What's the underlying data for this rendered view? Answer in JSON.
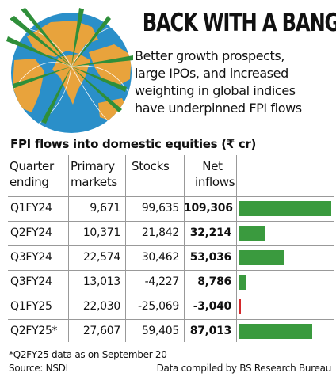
{
  "header": {
    "headline": "BACK WITH A BANG",
    "subhead_lines": [
      "Better growth prospects,",
      "large IPOs, and increased",
      "weighting in global indices",
      "have underpinned FPI flows"
    ]
  },
  "colors": {
    "positive_bar": "#3a9a3e",
    "negative_bar": "#d4282b",
    "ocean": "#2a8fc9",
    "land": "#e8a33c"
  },
  "chart_data": {
    "type": "table",
    "title": "FPI flows into domestic equities (₹ cr)",
    "columns": [
      {
        "line1": "Quarter",
        "line2": "ending"
      },
      {
        "line1": "Primary",
        "line2": "markets"
      },
      {
        "line1": "Stocks",
        "line2": ""
      },
      {
        "line1": "Net",
        "line2": "inflows"
      }
    ],
    "rows": [
      {
        "quarter": "Q1FY24",
        "primary": "9,671",
        "stocks": "99,635",
        "net": "109,306",
        "net_value": 109306
      },
      {
        "quarter": "Q2FY24",
        "primary": "10,371",
        "stocks": "21,842",
        "net": "32,214",
        "net_value": 32214
      },
      {
        "quarter": "Q3FY24",
        "primary": "22,574",
        "stocks": "30,462",
        "net": "53,036",
        "net_value": 53036
      },
      {
        "quarter": "Q3FY24",
        "primary": "13,013",
        "stocks": "-4,227",
        "net": "8,786",
        "net_value": 8786
      },
      {
        "quarter": "Q1FY25",
        "primary": "22,030",
        "stocks": "-25,069",
        "net": "-3,040",
        "net_value": -3040
      },
      {
        "quarter": "Q2FY25*",
        "primary": "27,607",
        "stocks": "59,405",
        "net": "87,013",
        "net_value": 87013
      }
    ],
    "bar_series": "net_value"
  },
  "footer": {
    "footnote": "*Q2FY25 data as on September 20",
    "source": "Source: NSDL",
    "credit": "Data compiled by BS Research Bureau"
  }
}
